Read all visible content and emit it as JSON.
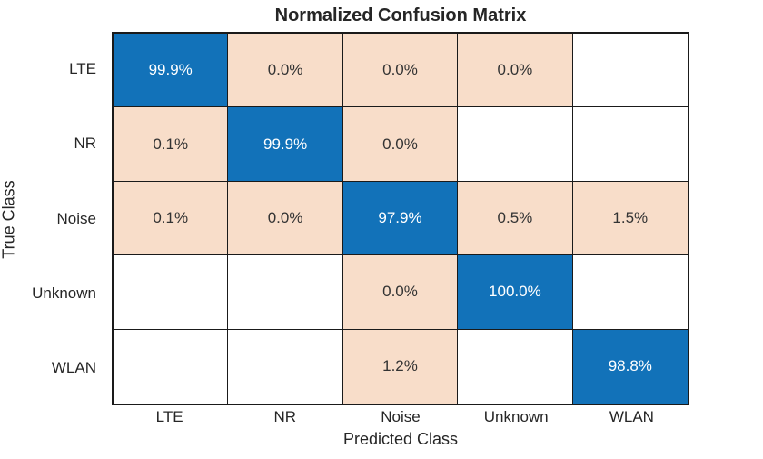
{
  "title": "Normalized Confusion Matrix",
  "colors": {
    "diagonal": "#1272B9",
    "offdiagonal": "#F8DDC9",
    "empty": "#FFFFFF",
    "grid_line": "#1A1A1A",
    "axis_text": "#262626",
    "cell_text_dark": "#333333",
    "cell_text_light": "#FFFFFF"
  },
  "chart_data": {
    "type": "heatmap",
    "title": "Normalized Confusion Matrix",
    "xlabel": "Predicted Class",
    "ylabel": "True Class",
    "categories": [
      "LTE",
      "NR",
      "Noise",
      "Unknown",
      "WLAN"
    ],
    "legend": "none",
    "grid": true,
    "rows": [
      {
        "true_class": "LTE",
        "cells": [
          {
            "text": "99.9%",
            "value": 99.9,
            "kind": "diagonal"
          },
          {
            "text": "0.0%",
            "value": 0.0,
            "kind": "offdiag"
          },
          {
            "text": "0.0%",
            "value": 0.0,
            "kind": "offdiag"
          },
          {
            "text": "0.0%",
            "value": 0.0,
            "kind": "offdiag"
          },
          {
            "text": "",
            "value": null,
            "kind": "empty"
          }
        ]
      },
      {
        "true_class": "NR",
        "cells": [
          {
            "text": "0.1%",
            "value": 0.1,
            "kind": "offdiag"
          },
          {
            "text": "99.9%",
            "value": 99.9,
            "kind": "diagonal"
          },
          {
            "text": "0.0%",
            "value": 0.0,
            "kind": "offdiag"
          },
          {
            "text": "",
            "value": null,
            "kind": "empty"
          },
          {
            "text": "",
            "value": null,
            "kind": "empty"
          }
        ]
      },
      {
        "true_class": "Noise",
        "cells": [
          {
            "text": "0.1%",
            "value": 0.1,
            "kind": "offdiag"
          },
          {
            "text": "0.0%",
            "value": 0.0,
            "kind": "offdiag"
          },
          {
            "text": "97.9%",
            "value": 97.9,
            "kind": "diagonal"
          },
          {
            "text": "0.5%",
            "value": 0.5,
            "kind": "offdiag"
          },
          {
            "text": "1.5%",
            "value": 1.5,
            "kind": "offdiag"
          }
        ]
      },
      {
        "true_class": "Unknown",
        "cells": [
          {
            "text": "",
            "value": null,
            "kind": "empty"
          },
          {
            "text": "",
            "value": null,
            "kind": "empty"
          },
          {
            "text": "0.0%",
            "value": 0.0,
            "kind": "offdiag"
          },
          {
            "text": "100.0%",
            "value": 100.0,
            "kind": "diagonal"
          },
          {
            "text": "",
            "value": null,
            "kind": "empty"
          }
        ]
      },
      {
        "true_class": "WLAN",
        "cells": [
          {
            "text": "",
            "value": null,
            "kind": "empty"
          },
          {
            "text": "",
            "value": null,
            "kind": "empty"
          },
          {
            "text": "1.2%",
            "value": 1.2,
            "kind": "offdiag"
          },
          {
            "text": "",
            "value": null,
            "kind": "empty"
          },
          {
            "text": "98.8%",
            "value": 98.8,
            "kind": "diagonal"
          }
        ]
      }
    ]
  }
}
